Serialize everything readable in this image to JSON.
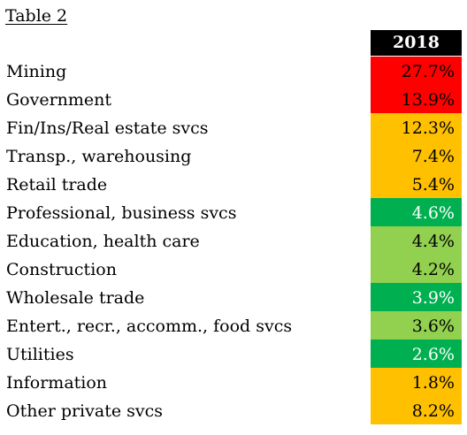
{
  "title": "Table 2",
  "column_header": "2018",
  "colors": {
    "red": "#ff0000",
    "amber": "#ffc000",
    "dark_green": "#00b050",
    "light_green": "#92d050",
    "header_bg": "#000000"
  },
  "rows": [
    {
      "label": "Mining",
      "value": "27.7%",
      "color": "red"
    },
    {
      "label": "Government",
      "value": "13.9%",
      "color": "red"
    },
    {
      "label": "Fin/Ins/Real estate svcs",
      "value": "12.3%",
      "color": "amber"
    },
    {
      "label": "Transp., warehousing",
      "value": "7.4%",
      "color": "amber"
    },
    {
      "label": "Retail trade",
      "value": "5.4%",
      "color": "amber"
    },
    {
      "label": "Professional, business svcs",
      "value": "4.6%",
      "color": "dark_green"
    },
    {
      "label": "Education, health care",
      "value": "4.4%",
      "color": "light_green"
    },
    {
      "label": "Construction",
      "value": "4.2%",
      "color": "light_green"
    },
    {
      "label": "Wholesale trade",
      "value": "3.9%",
      "color": "dark_green"
    },
    {
      "label": "Entert., recr., accomm., food svcs",
      "value": "3.6%",
      "color": "light_green"
    },
    {
      "label": "Utilities",
      "value": "2.6%",
      "color": "dark_green"
    },
    {
      "label": "Information",
      "value": "1.8%",
      "color": "amber"
    },
    {
      "label": "Other private svcs",
      "value": "8.2%",
      "color": "amber"
    }
  ]
}
